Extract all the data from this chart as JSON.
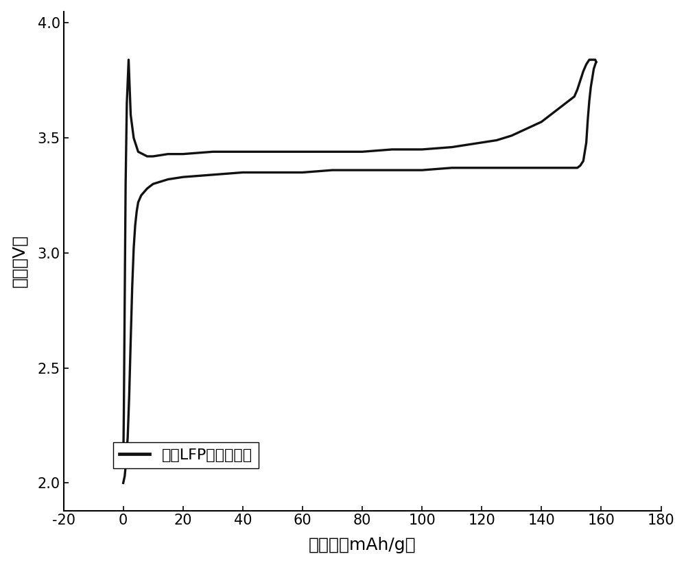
{
  "xlabel": "比容量（mAh/g）",
  "ylabel": "电压（V）",
  "legend_label": "废旧LFP充放电曲线",
  "xlim": [
    -20,
    180
  ],
  "ylim": [
    1.88,
    4.05
  ],
  "xticks": [
    -20,
    0,
    20,
    40,
    60,
    80,
    100,
    120,
    140,
    160,
    180
  ],
  "yticks": [
    2.0,
    2.5,
    3.0,
    3.5,
    4.0
  ],
  "line_color": "#111111",
  "line_width": 2.4,
  "background_color": "#ffffff",
  "charge_curve": {
    "x": [
      0.0,
      0.2,
      0.5,
      0.8,
      1.2,
      1.8,
      2.5,
      3.5,
      5.0,
      8.0,
      10.0,
      15.0,
      20.0,
      30.0,
      40.0,
      50.0,
      60.0,
      70.0,
      80.0,
      90.0,
      100.0,
      110.0,
      115.0,
      120.0,
      125.0,
      130.0,
      135.0,
      140.0,
      143.0,
      146.0,
      148.0,
      150.0,
      151.0,
      152.0,
      153.0,
      154.0,
      155.0,
      156.0,
      157.0,
      157.5,
      158.0,
      158.3
    ],
    "y": [
      2.07,
      2.3,
      2.8,
      3.3,
      3.65,
      3.84,
      3.6,
      3.5,
      3.44,
      3.42,
      3.42,
      3.43,
      3.43,
      3.44,
      3.44,
      3.44,
      3.44,
      3.44,
      3.44,
      3.45,
      3.45,
      3.46,
      3.47,
      3.48,
      3.49,
      3.51,
      3.54,
      3.57,
      3.6,
      3.63,
      3.65,
      3.67,
      3.68,
      3.71,
      3.75,
      3.79,
      3.82,
      3.84,
      3.84,
      3.84,
      3.84,
      3.83
    ]
  },
  "discharge_curve": {
    "x": [
      158.3,
      158.0,
      157.5,
      157.0,
      156.5,
      156.0,
      155.5,
      155.0,
      154.0,
      153.0,
      152.0,
      151.0,
      150.0,
      148.0,
      146.0,
      143.0,
      140.0,
      135.0,
      130.0,
      125.0,
      120.0,
      110.0,
      100.0,
      90.0,
      80.0,
      70.0,
      60.0,
      50.0,
      40.0,
      30.0,
      20.0,
      15.0,
      10.0,
      8.0,
      6.0,
      5.0,
      4.5,
      4.0,
      3.5,
      3.0,
      2.5,
      2.0,
      1.5,
      1.0,
      0.5,
      0.0
    ],
    "y": [
      3.83,
      3.82,
      3.8,
      3.76,
      3.72,
      3.66,
      3.58,
      3.48,
      3.4,
      3.38,
      3.37,
      3.37,
      3.37,
      3.37,
      3.37,
      3.37,
      3.37,
      3.37,
      3.37,
      3.37,
      3.37,
      3.37,
      3.36,
      3.36,
      3.36,
      3.36,
      3.35,
      3.35,
      3.35,
      3.34,
      3.33,
      3.32,
      3.3,
      3.28,
      3.25,
      3.22,
      3.18,
      3.12,
      3.02,
      2.85,
      2.62,
      2.38,
      2.2,
      2.1,
      2.03,
      2.0
    ]
  }
}
